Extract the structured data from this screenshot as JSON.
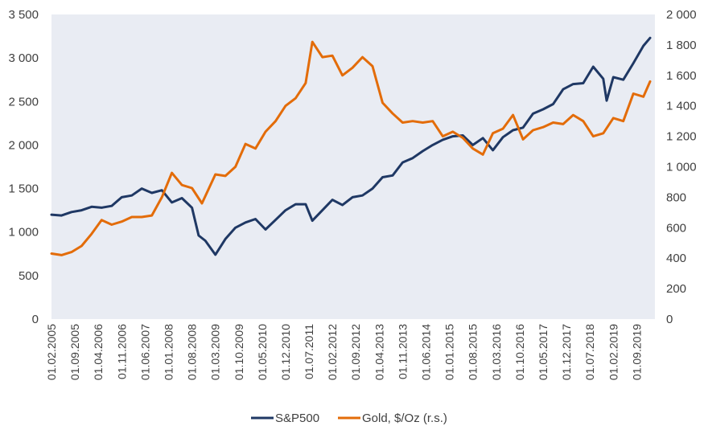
{
  "chart_data": {
    "type": "line",
    "title": "",
    "xlabel": "",
    "ylabel": "",
    "colors": {
      "sp500": "#1f3864",
      "gold": "#e36c09",
      "plot_bg": "#e9ecf3"
    },
    "x_tick_labels": [
      "01.02.2005",
      "01.09.2005",
      "01.04.2006",
      "01.11.2006",
      "01.06.2007",
      "01.01.2008",
      "01.08.2008",
      "01.03.2009",
      "01.10.2009",
      "01.05.2010",
      "01.12.2010",
      "01.07.2011",
      "01.02.2012",
      "01.09.2012",
      "01.04.2013",
      "01.11.2013",
      "01.06.2014",
      "01.01.2015",
      "01.08.2015",
      "01.03.2016",
      "01.10.2016",
      "01.05.2017",
      "01.12.2017",
      "01.07.2018",
      "01.02.2019",
      "01.09.2019"
    ],
    "x_range": [
      "01.02.2005",
      "01.01.2020"
    ],
    "y_left": {
      "min": 0,
      "max": 3500,
      "step": 500,
      "tick_labels": [
        "0",
        "500",
        "1 000",
        "1 500",
        "2 000",
        "2 500",
        "3 000",
        "3 500"
      ]
    },
    "y_right": {
      "min": 0,
      "max": 2000,
      "step": 200,
      "tick_labels": [
        "0",
        "200",
        "400",
        "600",
        "800",
        "1 000",
        "1 200",
        "1 400",
        "1 600",
        "1 800",
        "2 000"
      ]
    },
    "legend": {
      "position": "bottom",
      "entries": [
        "S&P500",
        "Gold, $/Oz (r.s.)"
      ]
    },
    "series": [
      {
        "name": "S&P500",
        "axis": "left",
        "x": [
          "02.2005",
          "05.2005",
          "08.2005",
          "11.2005",
          "02.2006",
          "05.2006",
          "08.2006",
          "11.2006",
          "02.2007",
          "05.2007",
          "08.2007",
          "11.2007",
          "02.2008",
          "05.2008",
          "08.2008",
          "10.2008",
          "12.2008",
          "03.2009",
          "06.2009",
          "09.2009",
          "12.2009",
          "03.2010",
          "06.2010",
          "09.2010",
          "12.2010",
          "03.2011",
          "06.2011",
          "08.2011",
          "11.2011",
          "02.2012",
          "05.2012",
          "08.2012",
          "11.2012",
          "02.2013",
          "05.2013",
          "08.2013",
          "11.2013",
          "02.2014",
          "05.2014",
          "08.2014",
          "11.2014",
          "02.2015",
          "05.2015",
          "08.2015",
          "11.2015",
          "02.2016",
          "05.2016",
          "08.2016",
          "11.2016",
          "02.2017",
          "05.2017",
          "08.2017",
          "11.2017",
          "02.2018",
          "05.2018",
          "08.2018",
          "11.2018",
          "12.2018",
          "02.2019",
          "05.2019",
          "08.2019",
          "11.2019",
          "01.2020"
        ],
        "values": [
          1200,
          1190,
          1230,
          1250,
          1290,
          1280,
          1300,
          1400,
          1420,
          1500,
          1450,
          1480,
          1340,
          1390,
          1280,
          960,
          900,
          740,
          920,
          1050,
          1110,
          1150,
          1030,
          1140,
          1250,
          1320,
          1320,
          1130,
          1250,
          1370,
          1310,
          1400,
          1420,
          1500,
          1630,
          1650,
          1800,
          1850,
          1930,
          2000,
          2060,
          2100,
          2110,
          2000,
          2080,
          1940,
          2090,
          2170,
          2200,
          2360,
          2410,
          2470,
          2640,
          2700,
          2710,
          2900,
          2760,
          2510,
          2780,
          2750,
          2940,
          3140,
          3230
        ]
      },
      {
        "name": "Gold, $/Oz (r.s.)",
        "axis": "right",
        "x": [
          "02.2005",
          "05.2005",
          "08.2005",
          "11.2005",
          "02.2006",
          "05.2006",
          "08.2006",
          "11.2006",
          "02.2007",
          "05.2007",
          "08.2007",
          "11.2007",
          "02.2008",
          "05.2008",
          "08.2008",
          "11.2008",
          "03.2009",
          "06.2009",
          "09.2009",
          "12.2009",
          "03.2010",
          "06.2010",
          "09.2010",
          "12.2010",
          "03.2011",
          "06.2011",
          "08.2011",
          "11.2011",
          "02.2012",
          "05.2012",
          "08.2012",
          "11.2012",
          "02.2013",
          "05.2013",
          "08.2013",
          "11.2013",
          "02.2014",
          "05.2014",
          "08.2014",
          "11.2014",
          "02.2015",
          "05.2015",
          "08.2015",
          "11.2015",
          "02.2016",
          "05.2016",
          "08.2016",
          "11.2016",
          "02.2017",
          "05.2017",
          "08.2017",
          "11.2017",
          "02.2018",
          "05.2018",
          "08.2018",
          "11.2018",
          "02.2019",
          "05.2019",
          "08.2019",
          "11.2019",
          "01.2020"
        ],
        "values": [
          430,
          420,
          440,
          480,
          560,
          650,
          620,
          640,
          670,
          670,
          680,
          800,
          960,
          880,
          860,
          760,
          950,
          940,
          1000,
          1150,
          1120,
          1230,
          1300,
          1400,
          1450,
          1550,
          1820,
          1720,
          1730,
          1600,
          1650,
          1720,
          1660,
          1420,
          1350,
          1290,
          1300,
          1290,
          1300,
          1200,
          1230,
          1190,
          1120,
          1080,
          1220,
          1250,
          1340,
          1180,
          1240,
          1260,
          1290,
          1280,
          1340,
          1300,
          1200,
          1220,
          1320,
          1300,
          1480,
          1460,
          1560
        ]
      }
    ]
  }
}
